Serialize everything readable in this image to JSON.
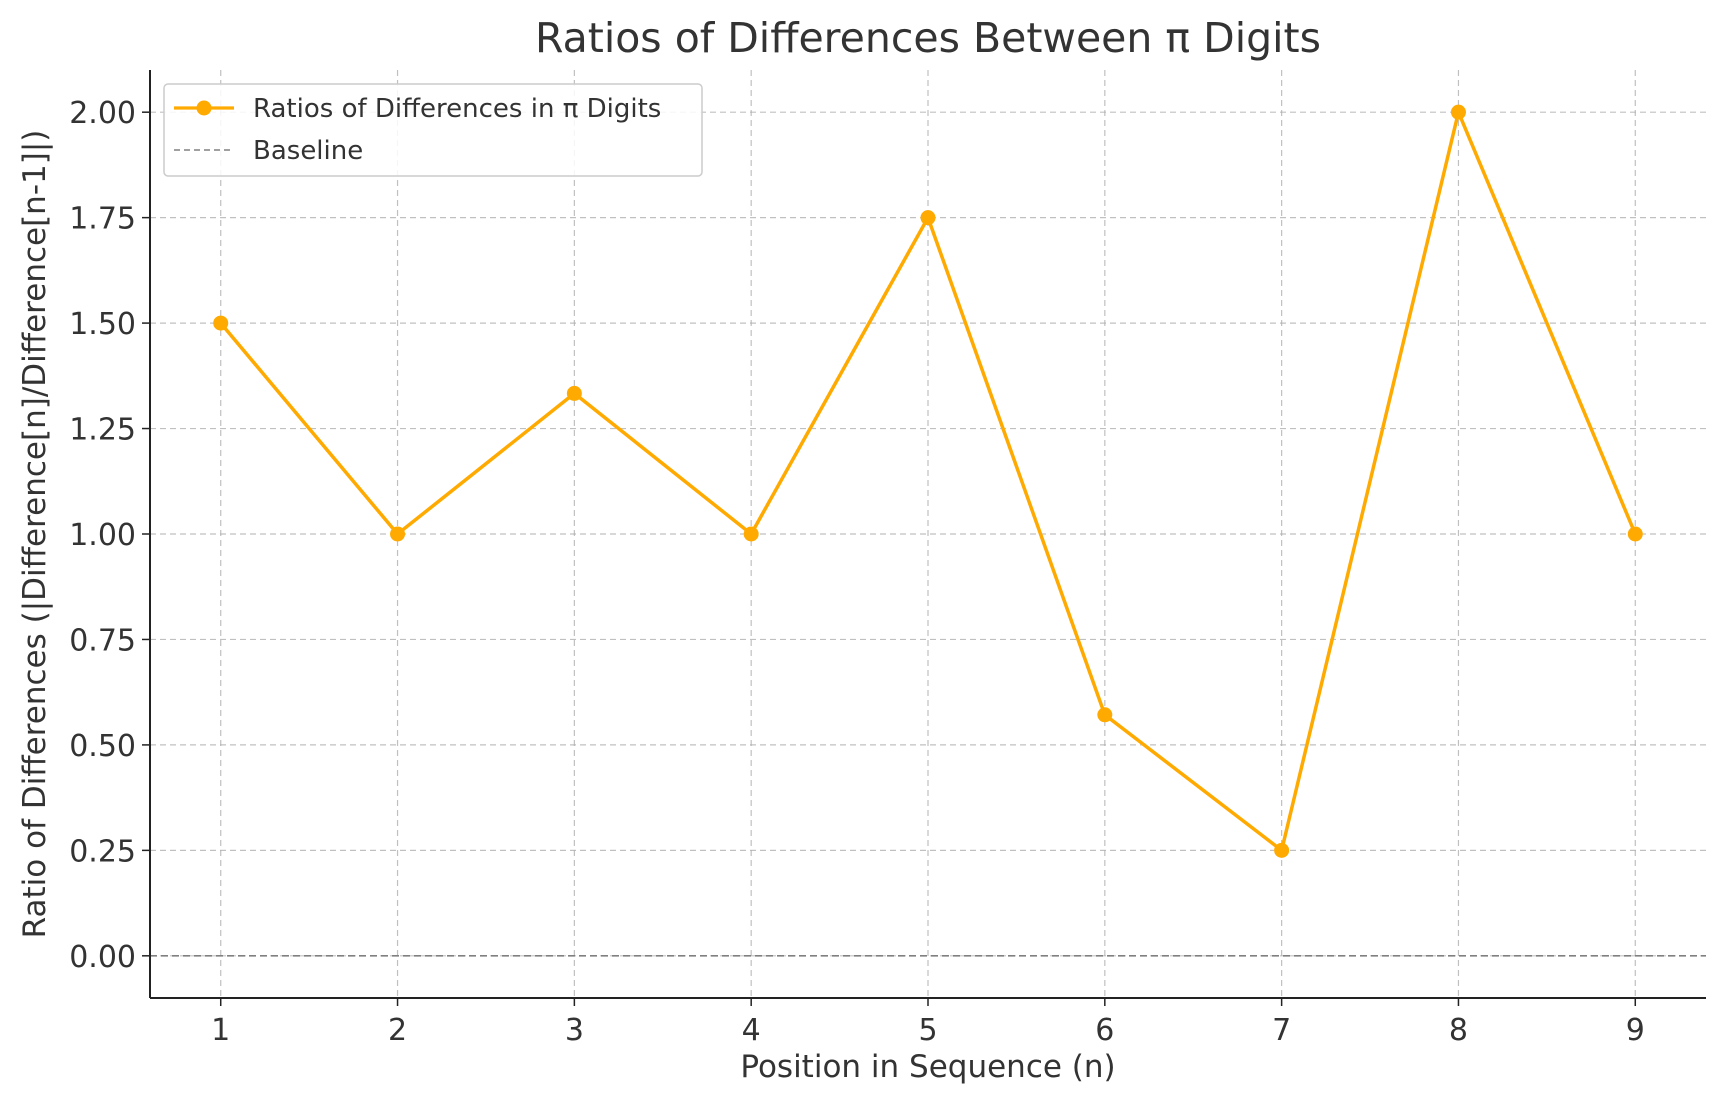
{
  "chart_data": {
    "type": "line",
    "title": "Ratios of Differences Between π Digits",
    "xlabel": "Position in Sequence (n)",
    "ylabel": "Ratio of Differences (|Difference[n]/Difference[n-1]|)",
    "x": [
      1,
      2,
      3,
      4,
      5,
      6,
      7,
      8,
      9
    ],
    "x_tick_labels": [
      "1",
      "2",
      "3",
      "4",
      "5",
      "6",
      "7",
      "8",
      "9"
    ],
    "y_tick_values": [
      0,
      0.25,
      0.5,
      0.75,
      1.0,
      1.25,
      1.5,
      1.75,
      2.0
    ],
    "y_tick_labels": [
      "0.00",
      "0.25",
      "0.50",
      "0.75",
      "1.00",
      "1.25",
      "1.50",
      "1.75",
      "2.00"
    ],
    "xlim": [
      0.6,
      9.4
    ],
    "ylim": [
      -0.1,
      2.1
    ],
    "grid": true,
    "legend_position": "top-left",
    "series": [
      {
        "name": "Ratios of Differences in π Digits",
        "values": [
          1.5,
          1.0,
          1.3333,
          1.0,
          1.75,
          0.5714,
          0.25,
          2.0,
          1.0
        ],
        "color": "#FFAA00",
        "marker": "circle",
        "line_style": "solid"
      }
    ],
    "reference_lines": [
      {
        "name": "Baseline",
        "y": 0,
        "color": "#808080",
        "line_style": "dashed"
      }
    ]
  }
}
